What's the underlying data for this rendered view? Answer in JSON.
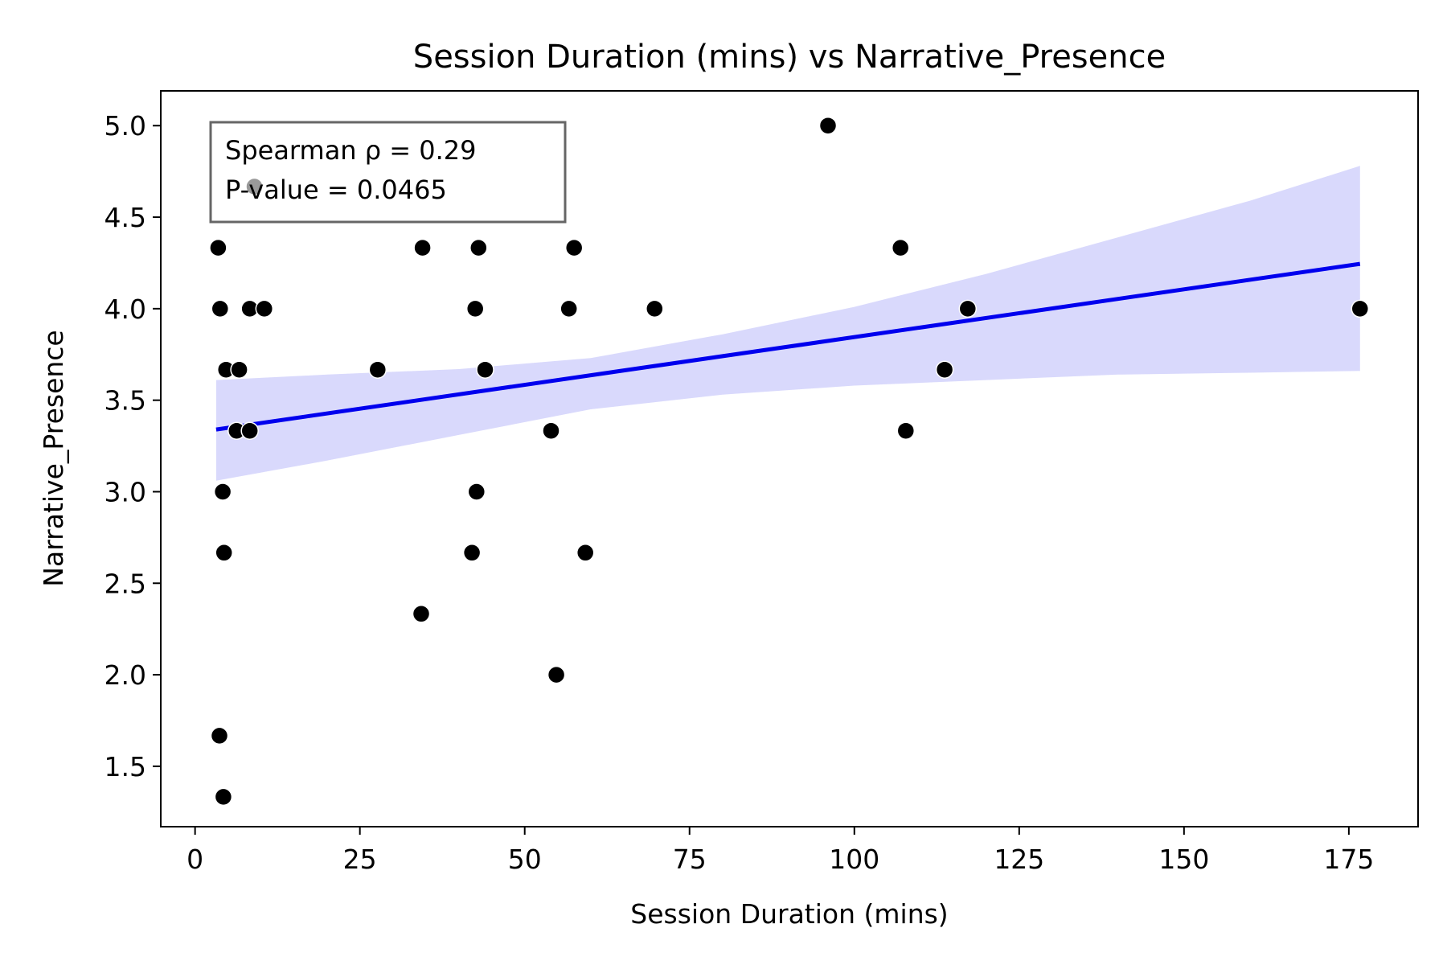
{
  "chart_data": {
    "type": "scatter",
    "title": "Session Duration (mins) vs Narrative_Presence",
    "xlabel": "Session Duration (mins)",
    "ylabel": "Narrative_Presence",
    "xlim": [
      -5.2,
      185.5
    ],
    "ylim": [
      1.17,
      5.19
    ],
    "xticks": [
      0,
      25,
      50,
      75,
      100,
      125,
      150,
      175
    ],
    "yticks": [
      1.5,
      2.0,
      2.5,
      3.0,
      3.5,
      4.0,
      4.5,
      5.0
    ],
    "grid": false,
    "annotation": {
      "lines": [
        "Spearman ρ = 0.29",
        "P-value = 0.0465"
      ]
    },
    "points": [
      {
        "x": 96,
        "y": 5.0
      },
      {
        "x": 9,
        "y": 4.667
      },
      {
        "x": 3.5,
        "y": 4.333
      },
      {
        "x": 34.5,
        "y": 4.333
      },
      {
        "x": 43,
        "y": 4.333
      },
      {
        "x": 57.5,
        "y": 4.333
      },
      {
        "x": 107,
        "y": 4.333
      },
      {
        "x": 3.8,
        "y": 4.0
      },
      {
        "x": 8.3,
        "y": 4.0
      },
      {
        "x": 10.5,
        "y": 4.0
      },
      {
        "x": 42.5,
        "y": 4.0
      },
      {
        "x": 56.7,
        "y": 4.0
      },
      {
        "x": 69.7,
        "y": 4.0
      },
      {
        "x": 117.2,
        "y": 4.0
      },
      {
        "x": 176.7,
        "y": 4.0
      },
      {
        "x": 4.7,
        "y": 3.667
      },
      {
        "x": 6.7,
        "y": 3.667
      },
      {
        "x": 27.7,
        "y": 3.667
      },
      {
        "x": 44,
        "y": 3.667
      },
      {
        "x": 113.7,
        "y": 3.667
      },
      {
        "x": 6.3,
        "y": 3.333
      },
      {
        "x": 8.3,
        "y": 3.333
      },
      {
        "x": 54,
        "y": 3.333
      },
      {
        "x": 107.8,
        "y": 3.333
      },
      {
        "x": 4.2,
        "y": 3.0
      },
      {
        "x": 42.7,
        "y": 3.0
      },
      {
        "x": 4.4,
        "y": 2.667
      },
      {
        "x": 42,
        "y": 2.667
      },
      {
        "x": 59.2,
        "y": 2.667
      },
      {
        "x": 34.3,
        "y": 2.333
      },
      {
        "x": 54.8,
        "y": 2.0
      },
      {
        "x": 3.7,
        "y": 1.667
      },
      {
        "x": 4.3,
        "y": 1.333
      }
    ],
    "regression": {
      "x": [
        3.2,
        176.7
      ],
      "y": [
        3.34,
        4.245
      ]
    },
    "confidence_band": {
      "x": [
        3.2,
        20,
        40,
        60,
        80,
        100,
        120,
        140,
        160,
        176.7
      ],
      "lower": [
        3.06,
        3.17,
        3.31,
        3.45,
        3.53,
        3.58,
        3.61,
        3.64,
        3.65,
        3.66
      ],
      "upper": [
        3.61,
        3.64,
        3.67,
        3.73,
        3.86,
        4.01,
        4.19,
        4.39,
        4.59,
        4.78
      ]
    },
    "colors": {
      "points": "#000000",
      "point_edge": "#ffffff",
      "line": "#0000ee",
      "band": "#d9d9fc",
      "annotation_border": "#666666"
    }
  }
}
